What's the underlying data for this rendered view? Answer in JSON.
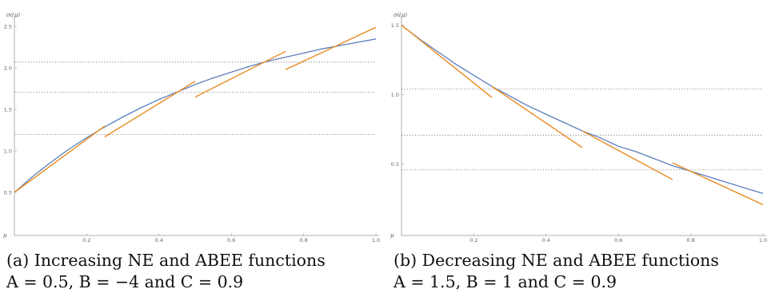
{
  "chart_data": [
    {
      "type": "line",
      "ylabel": "σi(μ)",
      "xlabel": "μ",
      "xlim": [
        0,
        1.0
      ],
      "ylim": [
        0,
        2.55
      ],
      "x_ticks": [
        "0.2",
        "0.4",
        "0.6",
        "0.8",
        "1.0"
      ],
      "y_ticks": [
        "0.5",
        "1.0",
        "1.5",
        "2.0",
        "2.5"
      ],
      "x_tick_values": [
        0.2,
        0.4,
        0.6,
        0.8,
        1.0
      ],
      "y_tick_values": [
        0.5,
        1.0,
        1.5,
        2.0,
        2.5
      ],
      "curve": {
        "x": [
          0,
          0.05,
          0.1,
          0.15,
          0.2,
          0.25,
          0.3,
          0.35,
          0.4,
          0.45,
          0.5,
          0.55,
          0.6,
          0.65,
          0.7,
          0.75,
          0.8,
          0.85,
          0.9,
          0.95,
          1.0
        ],
        "y": [
          0.5,
          0.69,
          0.86,
          1.02,
          1.16,
          1.29,
          1.41,
          1.52,
          1.62,
          1.71,
          1.8,
          1.88,
          1.95,
          2.02,
          2.08,
          2.13,
          2.18,
          2.23,
          2.27,
          2.31,
          2.35
        ],
        "color": "#5b7fba"
      },
      "segments": [
        {
          "x": [
            0,
            0.25
          ],
          "y": [
            0.5,
            1.3
          ]
        },
        {
          "x": [
            0.25,
            0.5
          ],
          "y": [
            1.17,
            1.84
          ]
        },
        {
          "x": [
            0.5,
            0.75
          ],
          "y": [
            1.65,
            2.2
          ]
        },
        {
          "x": [
            0.75,
            1.0
          ],
          "y": [
            1.98,
            2.49
          ]
        }
      ],
      "segment_color": "#e8912d",
      "reference_lines": [
        2.07,
        1.71,
        1.2
      ],
      "caption_line1": "(a) Increasing NE and ABEE functions",
      "caption_line2": "A = 0.5, B = −4 and C = 0.9"
    },
    {
      "type": "line",
      "ylabel": "σi(μ)",
      "xlabel": "μ",
      "xlim": [
        0,
        1.0
      ],
      "ylim": [
        0,
        1.52
      ],
      "x_ticks": [
        "0.2",
        "0.4",
        "0.6",
        "0.8",
        "1.0"
      ],
      "y_ticks": [
        "0.5",
        "1.0",
        "1.5"
      ],
      "x_tick_values": [
        0.2,
        0.4,
        0.6,
        0.8,
        1.0
      ],
      "y_tick_values": [
        0.5,
        1.0,
        1.5
      ],
      "curve": {
        "x": [
          0,
          0.05,
          0.1,
          0.15,
          0.2,
          0.25,
          0.3,
          0.35,
          0.4,
          0.45,
          0.5,
          0.55,
          0.6,
          0.65,
          0.7,
          0.75,
          0.8,
          0.85,
          0.9,
          0.95,
          1.0
        ],
        "y": [
          1.5,
          1.4,
          1.31,
          1.22,
          1.14,
          1.06,
          0.99,
          0.92,
          0.86,
          0.8,
          0.74,
          0.69,
          0.63,
          0.59,
          0.54,
          0.49,
          0.45,
          0.41,
          0.37,
          0.33,
          0.29
        ],
        "color": "#5b7fba"
      },
      "segments": [
        {
          "x": [
            0,
            0.25
          ],
          "y": [
            1.5,
            0.98
          ]
        },
        {
          "x": [
            0.25,
            0.5
          ],
          "y": [
            1.06,
            0.62
          ]
        },
        {
          "x": [
            0.5,
            0.75
          ],
          "y": [
            0.74,
            0.39
          ]
        },
        {
          "x": [
            0.75,
            1.0
          ],
          "y": [
            0.51,
            0.21
          ]
        }
      ],
      "segment_color": "#e8912d",
      "reference_lines": [
        1.04,
        0.71,
        0.46
      ],
      "caption_line1": "(b) Decreasing NE and ABEE functions",
      "caption_line2": "A = 1.5, B = 1 and C = 0.9"
    }
  ]
}
